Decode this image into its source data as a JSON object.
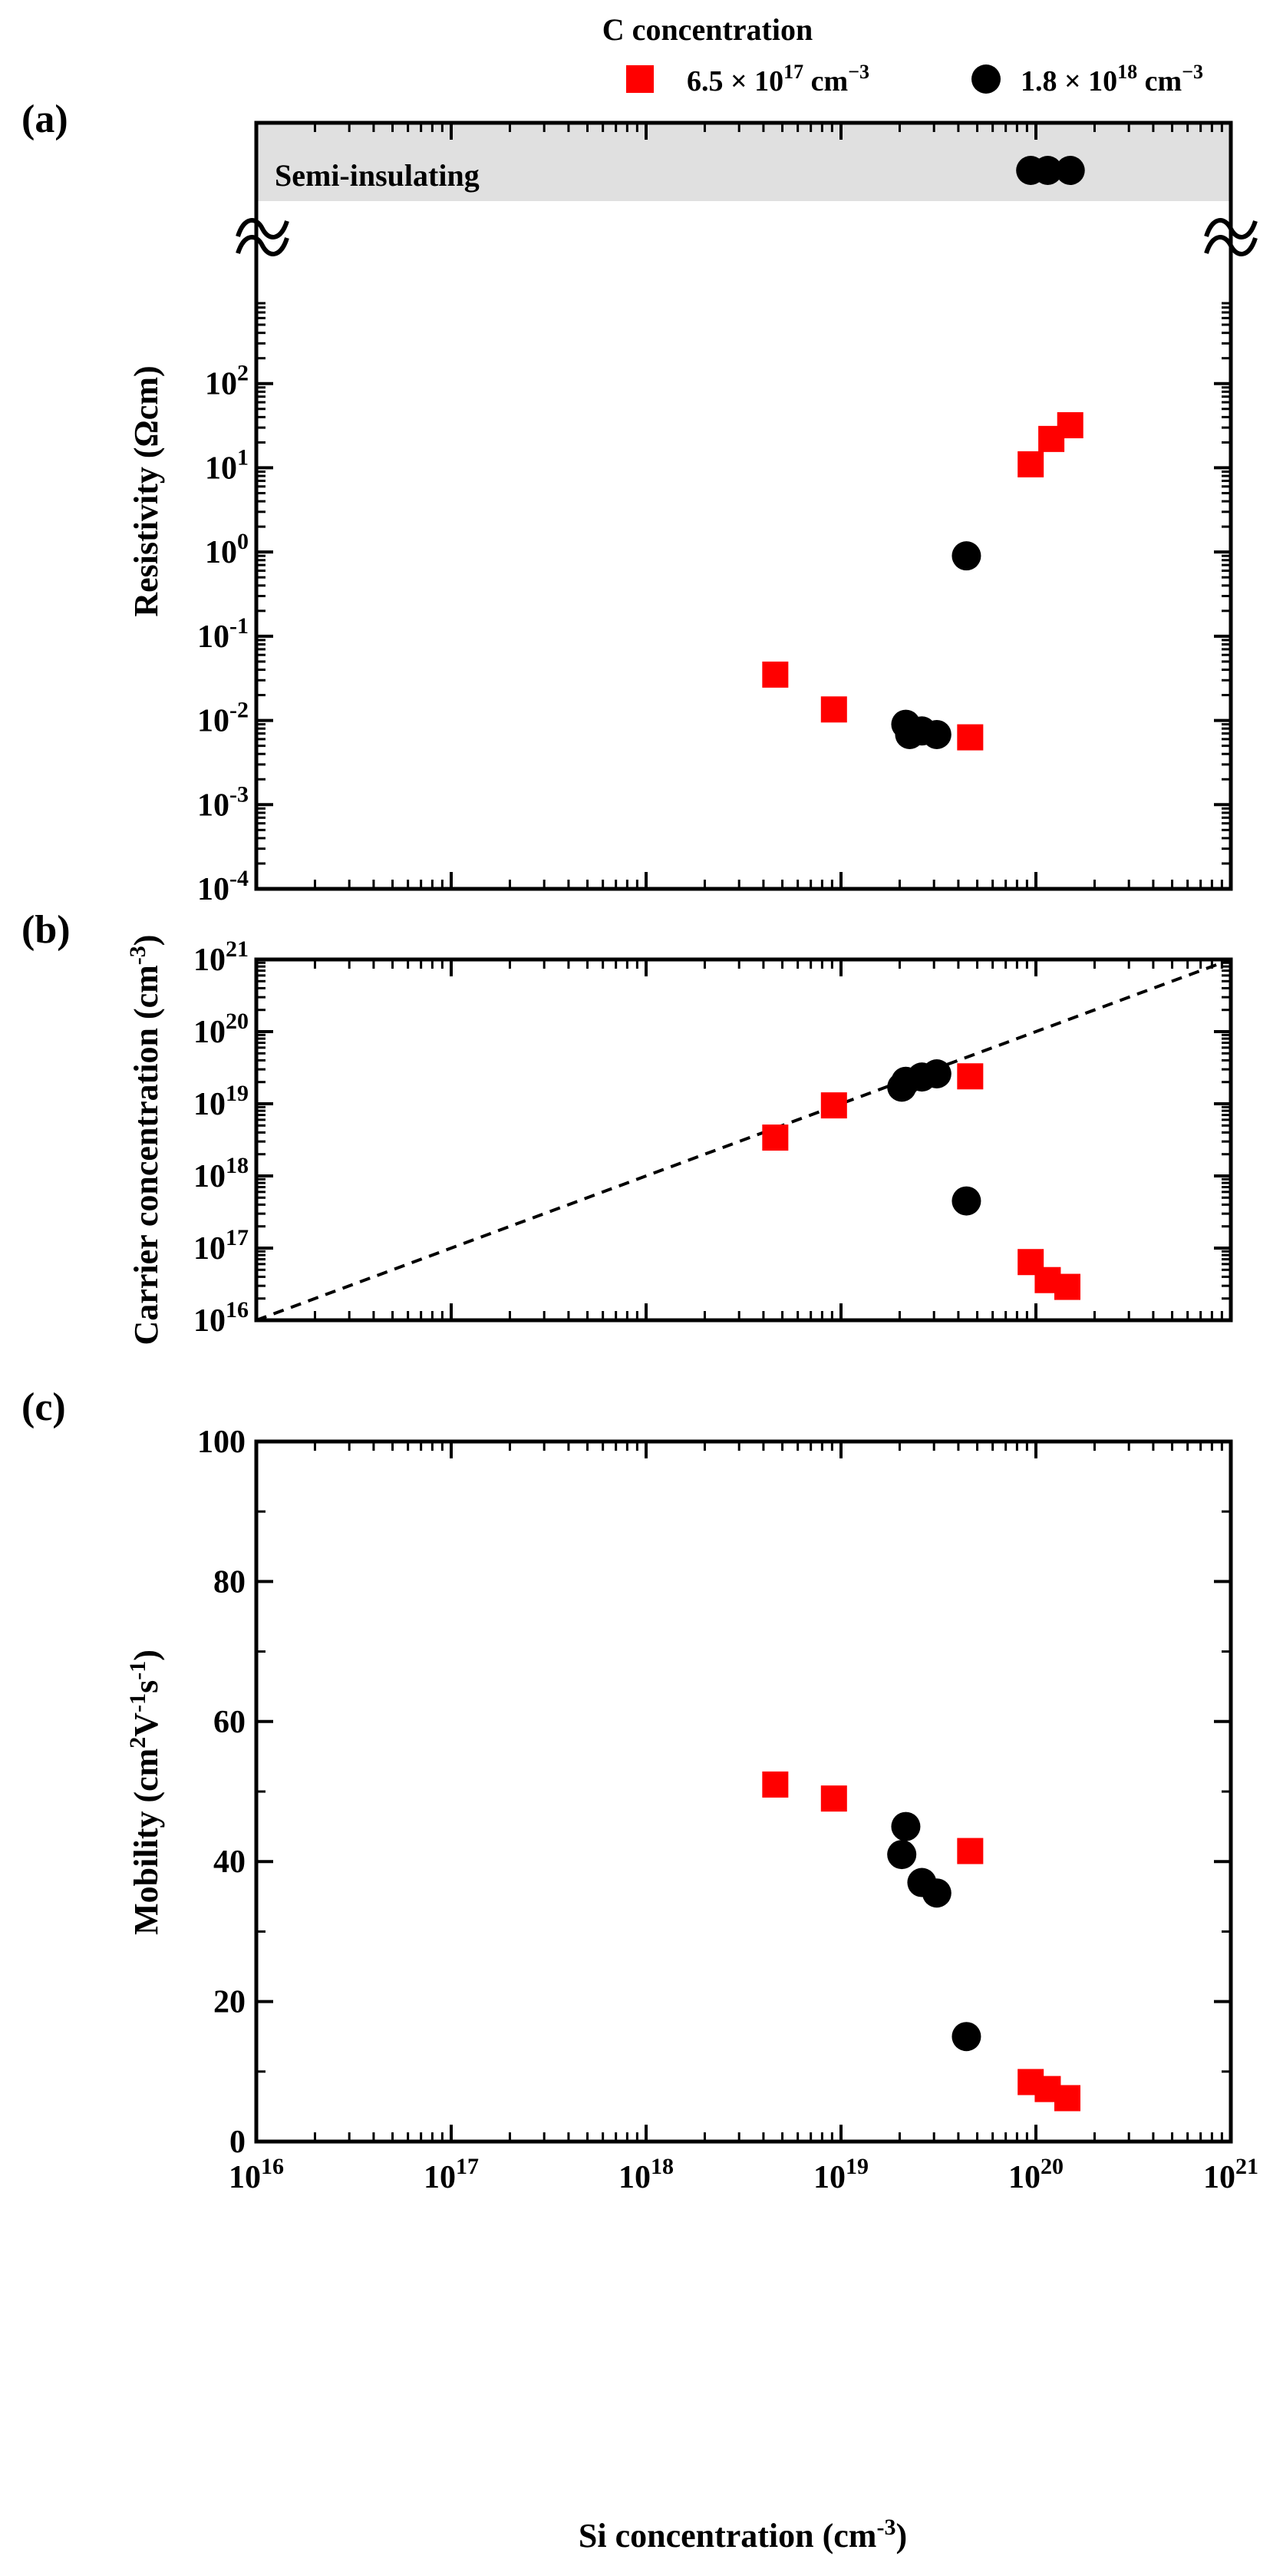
{
  "legend": {
    "title": "C concentration",
    "position": "top-right",
    "entries": [
      {
        "label_base": "6.5 × 10",
        "label_exp": "17",
        "label_unit": " cm",
        "label_unit_exp": "−3",
        "marker": "square",
        "color": "#ff0000"
      },
      {
        "label_base": "1.8 × 10",
        "label_exp": "18",
        "label_unit": " cm",
        "label_unit_exp": "−3",
        "marker": "circle",
        "color": "#000000"
      }
    ]
  },
  "chart_data": [
    {
      "panel_label": "(a)",
      "type": "scatter",
      "xscale": "log",
      "yscale": "log",
      "xlim": [
        1e+16,
        1e+21
      ],
      "ylim": [
        0.0001,
        1000.0
      ],
      "ylabel_base": "Resistivity (Ωcm)",
      "yticks": [
        {
          "base": "10",
          "exp": "-4",
          "value": 0.0001
        },
        {
          "base": "10",
          "exp": "-3",
          "value": 0.001
        },
        {
          "base": "10",
          "exp": "-2",
          "value": 0.01
        },
        {
          "base": "10",
          "exp": "-1",
          "value": 0.1
        },
        {
          "base": "10",
          "exp": "0",
          "value": 1
        },
        {
          "base": "10",
          "exp": "1",
          "value": 10
        },
        {
          "base": "10",
          "exp": "2",
          "value": 100
        }
      ],
      "band_label": "Semi-insulating",
      "series": [
        {
          "legend_index": 0,
          "points": [
            [
              4.6e+18,
              0.035
            ],
            [
              9.2e+18,
              0.0135
            ],
            [
              4.6e+19,
              0.0063
            ],
            [
              9.4e+19,
              11
            ],
            [
              1.2e+20,
              22
            ],
            [
              1.5e+20,
              32
            ]
          ]
        },
        {
          "legend_index": 1,
          "points": [
            [
              2.15e+19,
              0.009
            ],
            [
              2.25e+19,
              0.0068
            ],
            [
              2.6e+19,
              0.0075
            ],
            [
              3.1e+19,
              0.0068
            ],
            [
              4.4e+19,
              0.9
            ]
          ]
        }
      ],
      "semi_insulating_points": [
        [
          9.4e+19
        ],
        [
          1.15e+20
        ],
        [
          1.5e+20
        ]
      ]
    },
    {
      "panel_label": "(b)",
      "type": "scatter",
      "xscale": "log",
      "yscale": "log",
      "xlim": [
        1e+16,
        1e+21
      ],
      "ylim": [
        1e+16,
        1e+21
      ],
      "ylabel_base": "Carrier concentration (cm",
      "ylabel_exp": "-3",
      "ylabel_close": ")",
      "yticks": [
        {
          "base": "10",
          "exp": "16",
          "value": 1e+16
        },
        {
          "base": "10",
          "exp": "17",
          "value": 1e+17
        },
        {
          "base": "10",
          "exp": "18",
          "value": 1e+18
        },
        {
          "base": "10",
          "exp": "19",
          "value": 1e+19
        },
        {
          "base": "10",
          "exp": "20",
          "value": 1e+20
        },
        {
          "base": "10",
          "exp": "21",
          "value": 1e+21
        }
      ],
      "reference_line": "y = x",
      "series": [
        {
          "legend_index": 0,
          "points": [
            [
              4.6e+18,
              3.4e+18
            ],
            [
              9.2e+18,
              9.5e+18
            ],
            [
              4.6e+19,
              2.4e+19
            ],
            [
              9.4e+19,
              6.4e+16
            ],
            [
              1.15e+20,
              3.6e+16
            ],
            [
              1.45e+20,
              2.9e+16
            ]
          ]
        },
        {
          "legend_index": 1,
          "points": [
            [
              2.05e+19,
              1.7e+19
            ],
            [
              2.15e+19,
              2.05e+19
            ],
            [
              2.6e+19,
              2.35e+19
            ],
            [
              3.1e+19,
              2.6e+19
            ],
            [
              4.4e+19,
              4.5e+17
            ]
          ]
        }
      ]
    },
    {
      "panel_label": "(c)",
      "type": "scatter",
      "xscale": "log",
      "yscale": "linear",
      "xlim": [
        1e+16,
        1e+21
      ],
      "ylim": [
        0,
        100
      ],
      "ylabel_base": "Mobility (cm",
      "ylabel_parts": [
        {
          "t": "Mobility (cm",
          "s": ""
        },
        {
          "t": "2",
          "s": "sup"
        },
        {
          "t": "V",
          "s": ""
        },
        {
          "t": "-1",
          "s": "sup"
        },
        {
          "t": "s",
          "s": ""
        },
        {
          "t": "-1",
          "s": "sup"
        },
        {
          "t": ")",
          "s": ""
        }
      ],
      "yticks": [
        {
          "base": "0",
          "value": 0
        },
        {
          "base": "20",
          "value": 20
        },
        {
          "base": "40",
          "value": 40
        },
        {
          "base": "60",
          "value": 60
        },
        {
          "base": "80",
          "value": 80
        },
        {
          "base": "100",
          "value": 100
        }
      ],
      "series": [
        {
          "legend_index": 0,
          "points": [
            [
              4.6e+18,
              51
            ],
            [
              9.2e+18,
              49
            ],
            [
              4.6e+19,
              41.5
            ],
            [
              9.4e+19,
              8.5
            ],
            [
              1.15e+20,
              7.5
            ],
            [
              1.45e+20,
              6.2
            ]
          ]
        },
        {
          "legend_index": 1,
          "points": [
            [
              2.05e+19,
              41
            ],
            [
              2.15e+19,
              45
            ],
            [
              2.6e+19,
              37
            ],
            [
              3.1e+19,
              35.5
            ],
            [
              4.4e+19,
              15
            ]
          ]
        }
      ]
    }
  ],
  "xaxis": {
    "label_base": "Si concentration (cm",
    "label_exp": "-3",
    "label_close": ")",
    "ticks": [
      {
        "base": "10",
        "exp": "16",
        "value": 1e+16
      },
      {
        "base": "10",
        "exp": "17",
        "value": 1e+17
      },
      {
        "base": "10",
        "exp": "18",
        "value": 1e+18
      },
      {
        "base": "10",
        "exp": "19",
        "value": 1e+19
      },
      {
        "base": "10",
        "exp": "20",
        "value": 1e+20
      },
      {
        "base": "10",
        "exp": "21",
        "value": 1e+21
      }
    ]
  }
}
